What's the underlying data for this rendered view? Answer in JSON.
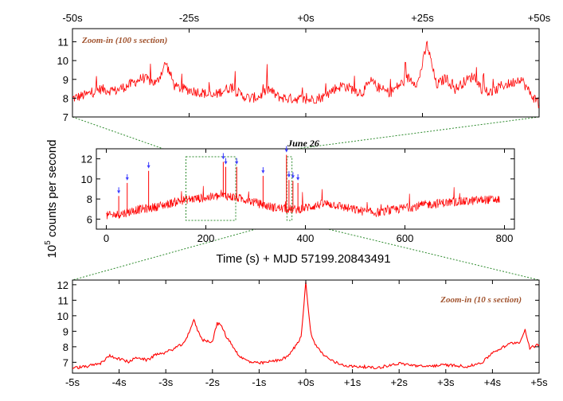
{
  "figure": {
    "ylabel_main": "counts per second",
    "ylabel_power": "10",
    "ylabel_exp": "5"
  },
  "colors": {
    "line": "#ff0000",
    "zoom_box": "#2e8b2e",
    "marker": "#3a3aff",
    "annotation": "#a0522d"
  },
  "chart_data": [
    {
      "id": "top",
      "type": "line",
      "title": "",
      "annotation": "Zoom-in (100 s section)",
      "xlim": [
        -50,
        50
      ],
      "ylim": [
        7,
        11.7
      ],
      "x_ticks": [
        "-50s",
        "-25s",
        "+0s",
        "+25s",
        "+50s"
      ],
      "y_ticks": [
        7,
        8,
        9,
        10,
        11
      ],
      "x_tick_position": "top",
      "series": [
        {
          "x": [
            -50,
            -47,
            -44,
            -41,
            -38,
            -35,
            -32,
            -30,
            -28,
            -26,
            -24,
            -22,
            -20,
            -18,
            -16,
            -14,
            -12,
            -10,
            -8,
            -6,
            -4,
            -2,
            0,
            2,
            4,
            6,
            8,
            10,
            12,
            14,
            16,
            18,
            20,
            22,
            24,
            26,
            28,
            30,
            32,
            34,
            36,
            38,
            40,
            42,
            44,
            46,
            48,
            50
          ],
          "y": [
            7.9,
            8.1,
            8.4,
            8.3,
            8.6,
            9.0,
            8.7,
            9.8,
            8.5,
            8.4,
            8.3,
            8.2,
            8.0,
            8.3,
            8.5,
            8.1,
            7.9,
            8.0,
            8.4,
            8.0,
            7.9,
            7.9,
            7.8,
            7.9,
            8.0,
            8.4,
            8.6,
            8.4,
            8.2,
            8.8,
            8.4,
            8.2,
            8.6,
            9.0,
            8.7,
            10.8,
            8.6,
            9.0,
            8.4,
            8.8,
            9.1,
            8.3,
            8.2,
            8.6,
            8.7,
            9.0,
            8.2,
            7.6
          ]
        }
      ]
    },
    {
      "id": "middle",
      "type": "line",
      "title": "June 26",
      "annotation": "",
      "xlim": [
        -20,
        820
      ],
      "ylim": [
        5,
        13
      ],
      "x_ticks": [
        "0",
        "200",
        "400",
        "600",
        "800"
      ],
      "y_ticks": [
        6,
        8,
        10,
        12
      ],
      "xlabel": "Time (s) + MJD 57199.20843491",
      "series": [
        {
          "x": [
            0,
            20,
            40,
            60,
            80,
            100,
            120,
            140,
            160,
            180,
            200,
            220,
            240,
            260,
            280,
            300,
            320,
            340,
            360,
            380,
            400,
            420,
            440,
            460,
            480,
            500,
            520,
            540,
            560,
            580,
            600,
            620,
            640,
            660,
            680,
            700,
            720,
            740,
            760,
            780,
            790
          ],
          "y": [
            6.2,
            6.3,
            6.5,
            6.8,
            6.9,
            7.1,
            7.3,
            7.6,
            7.8,
            7.9,
            8.0,
            8.1,
            8.2,
            8.0,
            7.8,
            7.5,
            7.2,
            7.0,
            6.9,
            6.8,
            7.0,
            7.2,
            7.4,
            7.3,
            7.0,
            6.8,
            6.6,
            6.5,
            6.6,
            6.8,
            7.0,
            7.1,
            7.3,
            7.4,
            7.5,
            7.6,
            7.6,
            7.7,
            7.8,
            7.8,
            7.8
          ]
        }
      ],
      "flare_markers_x": [
        25,
        42,
        85,
        235,
        240,
        262,
        315,
        362,
        367,
        375,
        385
      ]
    },
    {
      "id": "bottom",
      "type": "line",
      "title": "",
      "annotation": "Zoom-in (10 s section)",
      "xlim": [
        -5,
        5
      ],
      "ylim": [
        6.3,
        12.3
      ],
      "x_ticks": [
        "-5s",
        "-4s",
        "-3s",
        "-2s",
        "-1s",
        "+0s",
        "+1s",
        "+2s",
        "+3s",
        "+4s",
        "+5s"
      ],
      "y_ticks": [
        7,
        8,
        9,
        10,
        11,
        12
      ],
      "series": [
        {
          "x": [
            -5,
            -4.7,
            -4.4,
            -4.2,
            -4.0,
            -3.8,
            -3.6,
            -3.4,
            -3.2,
            -3.0,
            -2.8,
            -2.6,
            -2.4,
            -2.3,
            -2.2,
            -2.0,
            -1.9,
            -1.8,
            -1.7,
            -1.6,
            -1.5,
            -1.4,
            -1.2,
            -1.0,
            -0.8,
            -0.6,
            -0.4,
            -0.2,
            -0.1,
            0.0,
            0.05,
            0.1,
            0.2,
            0.4,
            0.6,
            0.8,
            1.0,
            1.2,
            1.5,
            2.0,
            2.5,
            3.0,
            3.5,
            3.8,
            4.0,
            4.2,
            4.4,
            4.6,
            4.7,
            4.8,
            5.0
          ],
          "y": [
            6.6,
            6.7,
            6.9,
            7.4,
            7.2,
            7.0,
            7.3,
            7.1,
            7.5,
            7.6,
            7.9,
            8.2,
            9.7,
            8.9,
            8.4,
            8.3,
            9.5,
            9.3,
            8.6,
            8.2,
            7.7,
            7.3,
            7.0,
            6.9,
            7.0,
            7.1,
            7.3,
            8.1,
            8.6,
            12.2,
            10.5,
            9.0,
            8.1,
            7.4,
            7.0,
            6.8,
            6.7,
            6.7,
            6.6,
            6.9,
            6.7,
            6.8,
            6.7,
            7.0,
            7.6,
            7.9,
            8.2,
            8.3,
            9.1,
            7.9,
            8.1
          ]
        }
      ]
    }
  ]
}
